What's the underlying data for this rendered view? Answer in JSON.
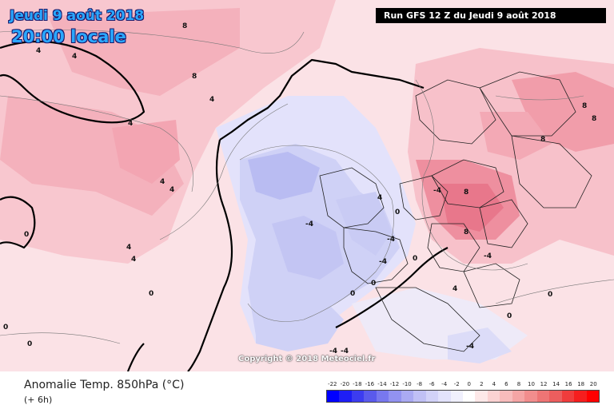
{
  "header": {
    "date": "Jeudi 9 août 2018",
    "time": "20:00 locale",
    "run": "Run GFS 12 Z du Jeudi 9 août 2018"
  },
  "copyright": "Copyright © 2018 Meteociel.fr",
  "footer": {
    "title": "Anomalie Temp. 850hPa (°C)",
    "subtitle": "(+ 6h)"
  },
  "legend": {
    "labels": [
      "-22",
      "-20",
      "-18",
      "-16",
      "-14",
      "-12",
      "-10",
      "-8",
      "-6",
      "-4",
      "-2",
      "0",
      "2",
      "4",
      "6",
      "8",
      "10",
      "12",
      "14",
      "16",
      "18",
      "20"
    ],
    "colors": [
      "#0000ff",
      "#1e1ef5",
      "#3c3cf0",
      "#5a5aec",
      "#7878ee",
      "#9292f0",
      "#aaaaf2",
      "#c0c0f5",
      "#d2d2f8",
      "#e2e2fb",
      "#f0f0fd",
      "#ffffff",
      "#fde8e8",
      "#fbd2d2",
      "#f8bcbc",
      "#f5a5a5",
      "#f28d8d",
      "#ee7575",
      "#ec5e5e",
      "#f03c3c",
      "#f51e1e",
      "#ff0000"
    ]
  },
  "contour_labels": [
    "8",
    "8",
    "4",
    "4",
    "4",
    "4",
    "4",
    "4",
    "4",
    "-4",
    "-4",
    "-4",
    "-4",
    "-4",
    "-4",
    "0",
    "0",
    "0",
    "0",
    "0",
    "0",
    "0",
    "0",
    "0",
    "8",
    "8",
    "8",
    "8",
    "8",
    "4",
    "4",
    "4",
    "0",
    "-4",
    "-4"
  ]
}
